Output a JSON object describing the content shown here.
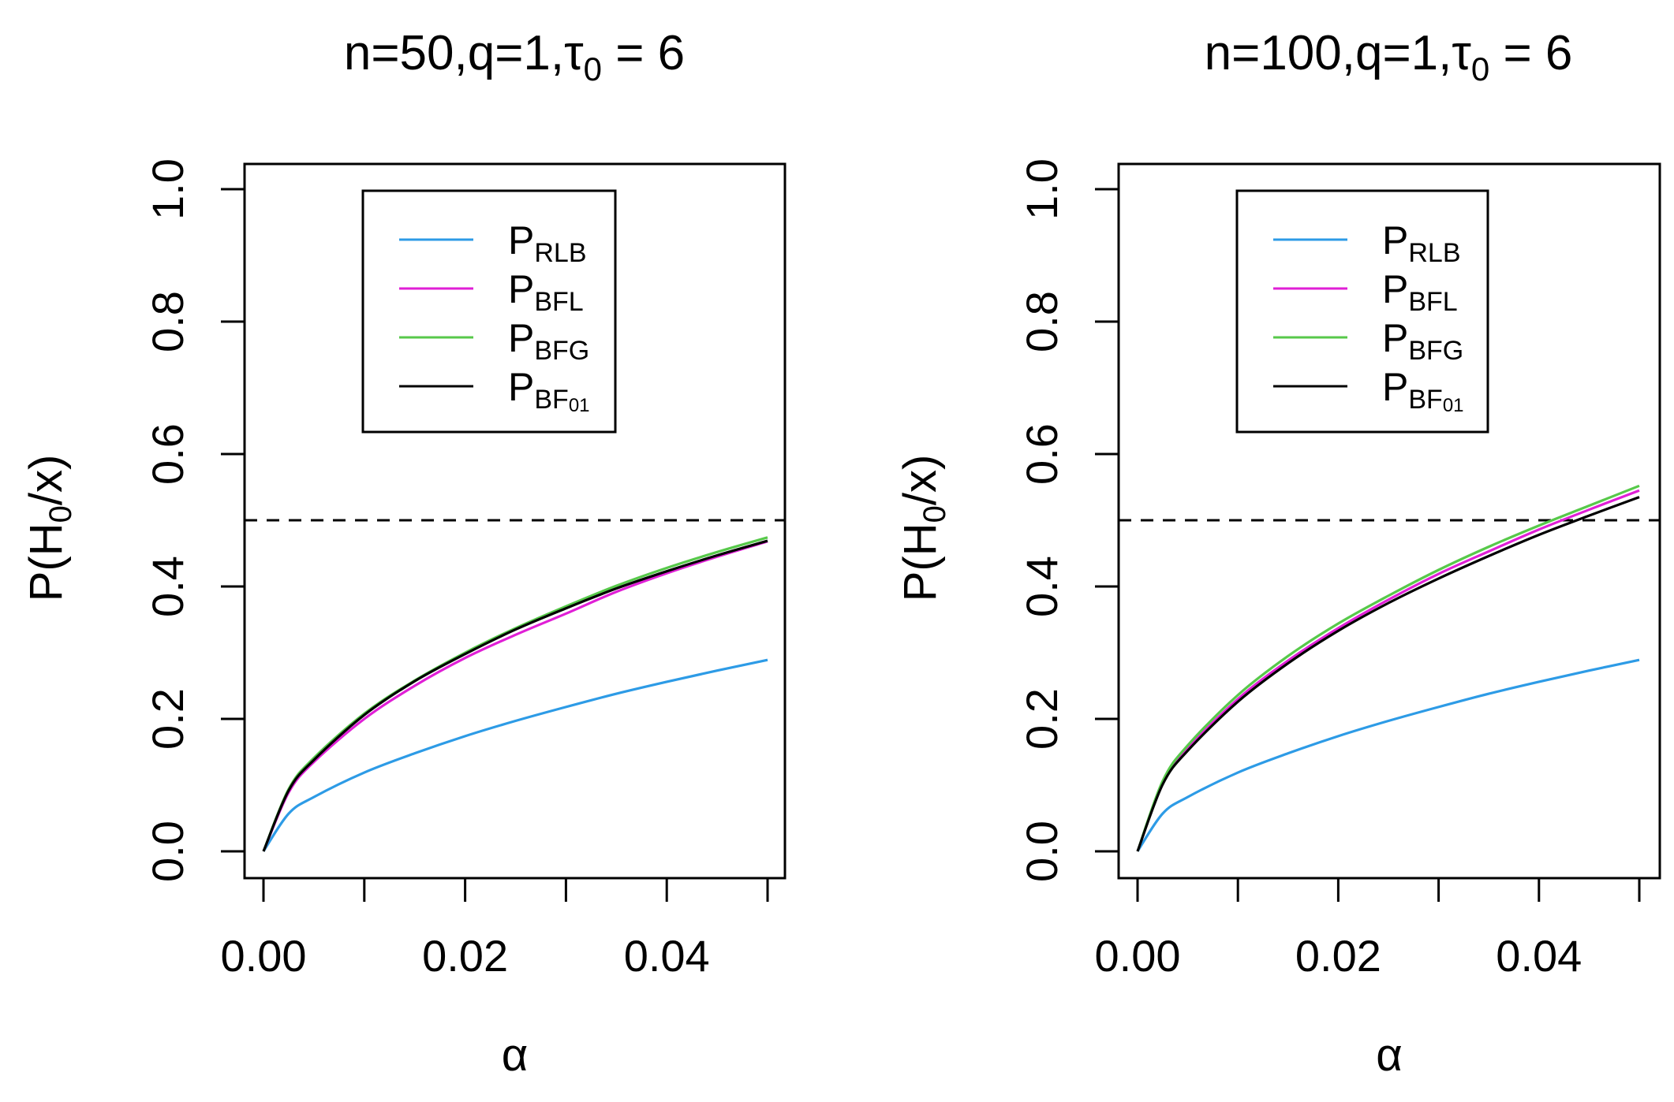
{
  "chart_data": [
    {
      "type": "line",
      "title": {
        "main": "n=50,q=1,τ",
        "sub": "0",
        "tail": " = 6"
      },
      "xlabel": "α",
      "ylabel": {
        "main": "P(H",
        "sub": "0",
        "tail": "/x)"
      },
      "xlim": [
        0,
        0.05
      ],
      "ylim": [
        0,
        1
      ],
      "x_ticks": [
        0.0,
        0.01,
        0.02,
        0.03,
        0.04,
        0.05
      ],
      "x_tick_labels": [
        "0.00",
        "0.02",
        "0.04"
      ],
      "y_tick_labels": [
        "0.0",
        "0.2",
        "0.4",
        "0.6",
        "0.8",
        "1.0"
      ],
      "reference_line": {
        "y": 0.5,
        "style": "dashed"
      },
      "legend_position": "top-center",
      "series": [
        {
          "name": "RLB",
          "label": "P",
          "sub": "RLB",
          "color": "#2d9be6",
          "x": [
            0,
            0.0025,
            0.005,
            0.01,
            0.015,
            0.02,
            0.025,
            0.03,
            0.035,
            0.04,
            0.045,
            0.05
          ],
          "y": [
            0,
            0.057,
            0.082,
            0.119,
            0.148,
            0.174,
            0.197,
            0.218,
            0.238,
            0.256,
            0.273,
            0.289
          ]
        },
        {
          "name": "BFL",
          "label": "P",
          "sub": "BFL",
          "color": "#e01fd6",
          "x": [
            0,
            0.0025,
            0.005,
            0.01,
            0.015,
            0.02,
            0.025,
            0.03,
            0.035,
            0.04,
            0.045,
            0.05
          ],
          "y": [
            0,
            0.089,
            0.135,
            0.2,
            0.25,
            0.292,
            0.327,
            0.359,
            0.392,
            0.42,
            0.445,
            0.468
          ]
        },
        {
          "name": "BFG",
          "label": "P",
          "sub": "BFG",
          "color": "#57c94a",
          "x": [
            0,
            0.0025,
            0.005,
            0.01,
            0.015,
            0.02,
            0.025,
            0.03,
            0.035,
            0.04,
            0.045,
            0.05
          ],
          "y": [
            0,
            0.094,
            0.141,
            0.208,
            0.258,
            0.3,
            0.337,
            0.37,
            0.401,
            0.428,
            0.452,
            0.474
          ]
        },
        {
          "name": "BF01",
          "label": "P",
          "sub": "BF",
          "subsub": "01",
          "color": "#000000",
          "x": [
            0,
            0.0025,
            0.005,
            0.01,
            0.015,
            0.02,
            0.025,
            0.03,
            0.035,
            0.04,
            0.045,
            0.05
          ],
          "y": [
            0,
            0.092,
            0.138,
            0.206,
            0.257,
            0.298,
            0.335,
            0.367,
            0.397,
            0.423,
            0.447,
            0.469
          ]
        }
      ]
    },
    {
      "type": "line",
      "title": {
        "main": "n=100,q=1,τ",
        "sub": "0",
        "tail": " = 6"
      },
      "xlabel": "α",
      "ylabel": {
        "main": "P(H",
        "sub": "0",
        "tail": "/x)"
      },
      "xlim": [
        0,
        0.05
      ],
      "ylim": [
        0,
        1
      ],
      "x_ticks": [
        0.0,
        0.01,
        0.02,
        0.03,
        0.04,
        0.05
      ],
      "x_tick_labels": [
        "0.00",
        "0.02",
        "0.04"
      ],
      "y_tick_labels": [
        "0.0",
        "0.2",
        "0.4",
        "0.6",
        "0.8",
        "1.0"
      ],
      "reference_line": {
        "y": 0.5,
        "style": "dashed"
      },
      "legend_position": "top-center",
      "series": [
        {
          "name": "RLB",
          "label": "P",
          "sub": "RLB",
          "color": "#2d9be6",
          "x": [
            0,
            0.0025,
            0.005,
            0.01,
            0.015,
            0.02,
            0.025,
            0.03,
            0.035,
            0.04,
            0.045,
            0.05
          ],
          "y": [
            0,
            0.057,
            0.082,
            0.119,
            0.148,
            0.174,
            0.197,
            0.218,
            0.238,
            0.256,
            0.273,
            0.289
          ]
        },
        {
          "name": "BFL",
          "label": "P",
          "sub": "BFL",
          "color": "#e01fd6",
          "x": [
            0,
            0.0025,
            0.005,
            0.01,
            0.015,
            0.02,
            0.025,
            0.03,
            0.035,
            0.04,
            0.045,
            0.05
          ],
          "y": [
            0,
            0.103,
            0.155,
            0.23,
            0.288,
            0.337,
            0.38,
            0.419,
            0.453,
            0.486,
            0.516,
            0.545
          ]
        },
        {
          "name": "BFG",
          "label": "P",
          "sub": "BFG",
          "color": "#57c94a",
          "x": [
            0,
            0.0025,
            0.005,
            0.01,
            0.015,
            0.02,
            0.025,
            0.03,
            0.035,
            0.04,
            0.045,
            0.05
          ],
          "y": [
            0,
            0.106,
            0.16,
            0.236,
            0.295,
            0.344,
            0.386,
            0.425,
            0.46,
            0.492,
            0.522,
            0.552
          ]
        },
        {
          "name": "BF01",
          "label": "P",
          "sub": "BF",
          "subsub": "01",
          "color": "#000000",
          "x": [
            0,
            0.0025,
            0.005,
            0.01,
            0.015,
            0.02,
            0.025,
            0.03,
            0.035,
            0.04,
            0.045,
            0.05
          ],
          "y": [
            0,
            0.101,
            0.152,
            0.226,
            0.284,
            0.333,
            0.375,
            0.412,
            0.446,
            0.478,
            0.507,
            0.535
          ]
        }
      ]
    }
  ]
}
